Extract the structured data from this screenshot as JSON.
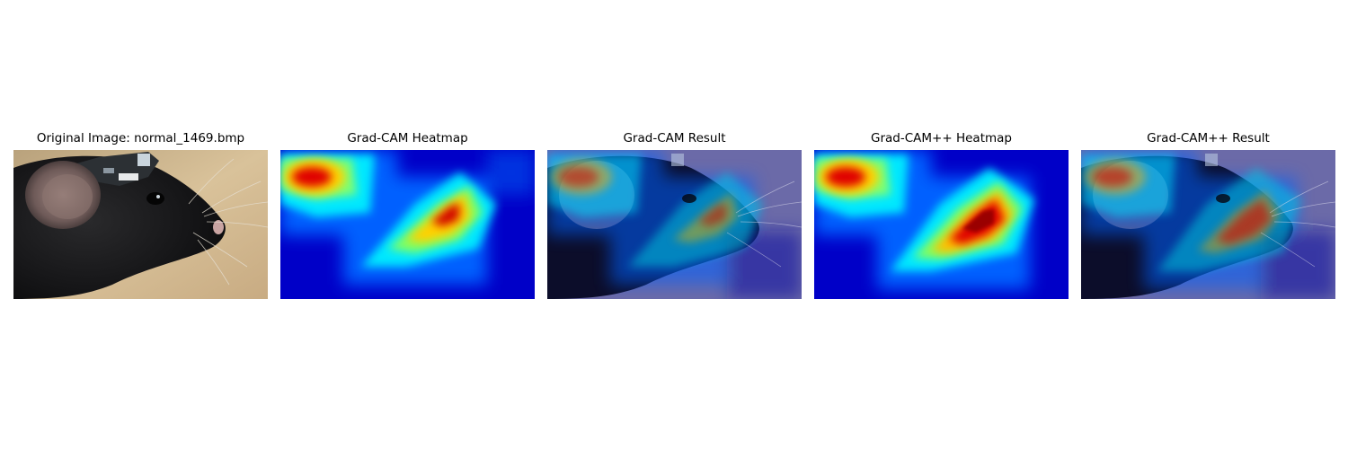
{
  "figure": {
    "panels": [
      {
        "title": "Original Image: normal_1469.bmp",
        "content": "mouse-photo"
      },
      {
        "title": "Grad-CAM Heatmap",
        "content": "heatmap"
      },
      {
        "title": "Grad-CAM Result",
        "content": "overlay"
      },
      {
        "title": "Grad-CAM++ Heatmap",
        "content": "heatmap"
      },
      {
        "title": "Grad-CAM++ Result",
        "content": "overlay"
      }
    ],
    "colormap": "jet"
  }
}
